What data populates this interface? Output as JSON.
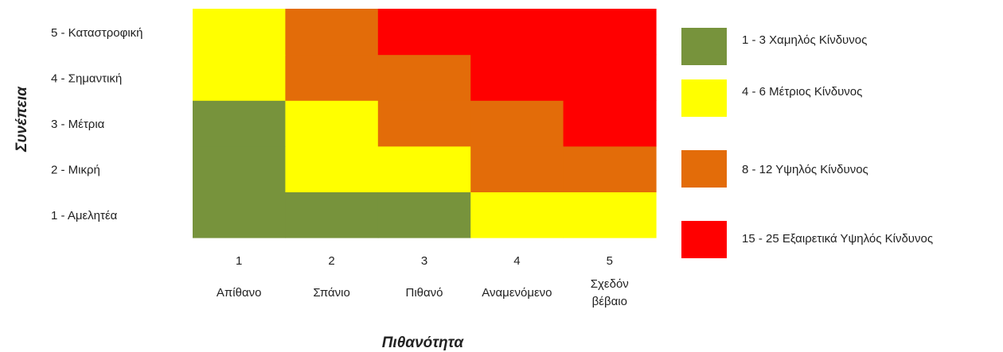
{
  "chart_data": {
    "type": "heatmap",
    "title": "",
    "xlabel": "Πιθανότητα",
    "ylabel": "Συνέπεια",
    "x_ticks": [
      "1",
      "2",
      "3",
      "4",
      "5"
    ],
    "x_categories": [
      "Απίθανο",
      "Σπάνιο",
      "Πιθανό",
      "Αναμενόμενο",
      "Σχεδόν βέβαιο"
    ],
    "y_categories": [
      "1 - Αμελητέα",
      "2 - Μικρή",
      "3 - Μέτρια",
      "4 - Σημαντική",
      "5 - Καταστροφική"
    ],
    "grid": [
      [
        "low",
        "low",
        "low",
        "medium",
        "medium"
      ],
      [
        "low",
        "medium",
        "medium",
        "high",
        "high"
      ],
      [
        "low",
        "medium",
        "high",
        "high",
        "very_high"
      ],
      [
        "medium",
        "high",
        "high",
        "very_high",
        "very_high"
      ],
      [
        "medium",
        "high",
        "very_high",
        "very_high",
        "very_high"
      ]
    ],
    "legend": [
      {
        "key": "low",
        "label": "1 - 3 Χαμηλός Κίνδυνος",
        "color": "#77933c"
      },
      {
        "key": "medium",
        "label": "4 - 6 Μέτριος Κίνδυνος",
        "color": "#ffff00"
      },
      {
        "key": "high",
        "label": "8 - 12 Υψηλός Κίνδυνος",
        "color": "#e36c09"
      },
      {
        "key": "very_high",
        "label": "15 - 25 Εξαιρετικά Υψηλός Κίνδυνος",
        "color": "#ff0000"
      }
    ],
    "legend_position": "right",
    "grid_lines": false
  }
}
